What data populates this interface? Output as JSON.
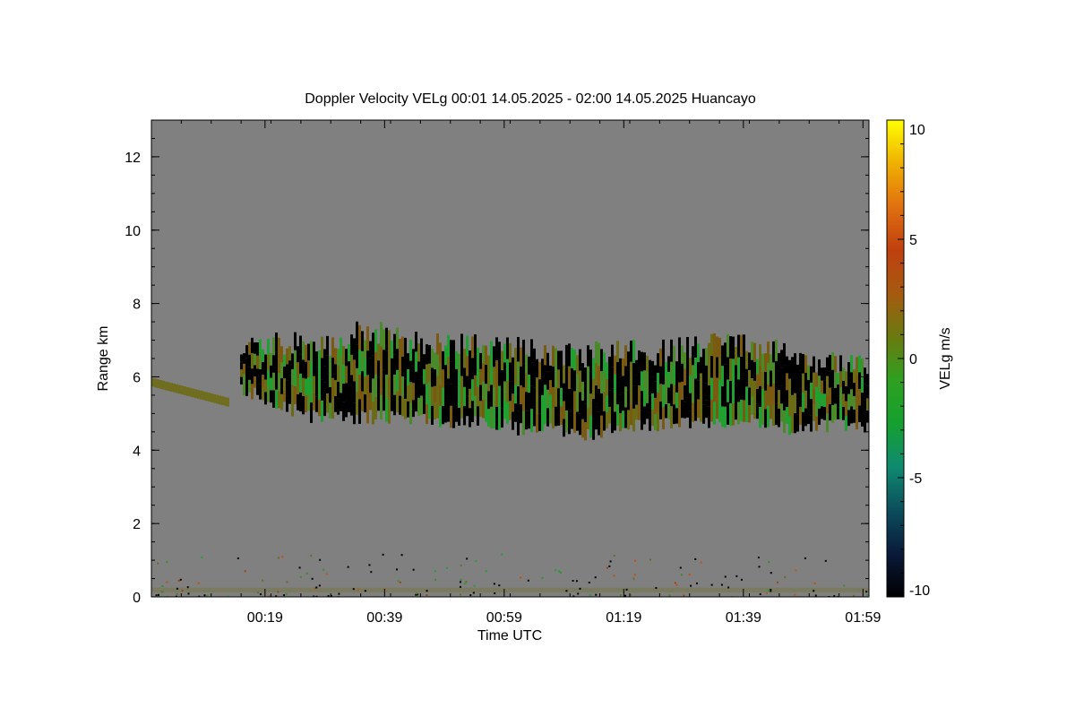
{
  "chart_data": {
    "type": "heatmap",
    "title": "Doppler Velocity VELg   00:01 14.05.2025 - 02:00 14.05.2025 Huancayo",
    "xlabel": "Time UTC",
    "ylabel": "Range km",
    "colorbar_label": "VELg m/s",
    "x_range_minutes": [
      0,
      120
    ],
    "x_ticks": [
      {
        "minute": 19,
        "label": "00:19"
      },
      {
        "minute": 39,
        "label": "00:39"
      },
      {
        "minute": 59,
        "label": "00:59"
      },
      {
        "minute": 79,
        "label": "01:19"
      },
      {
        "minute": 99,
        "label": "01:39"
      },
      {
        "minute": 119,
        "label": "01:59"
      }
    ],
    "ylim": [
      0,
      13
    ],
    "y_ticks": [
      {
        "value": 0,
        "label": "0"
      },
      {
        "value": 2,
        "label": "2"
      },
      {
        "value": 4,
        "label": "4"
      },
      {
        "value": 6,
        "label": "6"
      },
      {
        "value": 8,
        "label": "8"
      },
      {
        "value": 10,
        "label": "10"
      },
      {
        "value": 12,
        "label": "12"
      }
    ],
    "colorbar_range": [
      -10,
      10
    ],
    "colorbar_ticks": [
      {
        "value": 10,
        "label": "10"
      },
      {
        "value": 5,
        "label": "5"
      },
      {
        "value": 0,
        "label": "0"
      },
      {
        "value": -5,
        "label": "-5"
      },
      {
        "value": -10,
        "label": "-10"
      }
    ],
    "colormap": [
      "#000000",
      "#0a1a3a",
      "#0b4d5c",
      "#0f8a70",
      "#15a030",
      "#2fa020",
      "#6a7a10",
      "#a55a10",
      "#c04010",
      "#e07010",
      "#f0b000",
      "#ffff00"
    ],
    "background_color": "#808080",
    "cloud_layer": {
      "description_color_mix": [
        "#4a8a2a",
        "#1fa030",
        "#6b6a15",
        "#7a5a10"
      ],
      "top_km": [
        5.6,
        5.9,
        6.2,
        6.5,
        7.0,
        7.0,
        7.1,
        7.0,
        7.1,
        7.4,
        7.3,
        7.1,
        7.1,
        7.1,
        7.0,
        7.1,
        6.9,
        6.8,
        6.7,
        6.9,
        6.9,
        6.8,
        6.9,
        7.0,
        7.1,
        7.1,
        6.9,
        6.8,
        6.6,
        6.6
      ],
      "base_km": [
        5.6,
        5.4,
        5.2,
        5.5,
        5.8,
        5.5,
        5.2,
        5.0,
        5.0,
        5.0,
        5.0,
        5.0,
        4.9,
        4.8,
        4.9,
        4.8,
        4.6,
        4.7,
        4.5,
        4.6,
        4.7,
        4.8,
        4.8,
        4.8,
        4.8,
        4.9,
        4.8,
        4.7,
        4.8,
        4.7
      ],
      "minutes": [
        0,
        4,
        8,
        12,
        15,
        19,
        23,
        27,
        31,
        35,
        39,
        43,
        47,
        51,
        55,
        59,
        63,
        67,
        71,
        75,
        79,
        83,
        87,
        91,
        95,
        99,
        103,
        107,
        111,
        120
      ]
    },
    "surface_clutter_km": [
      0,
      1.2
    ]
  }
}
